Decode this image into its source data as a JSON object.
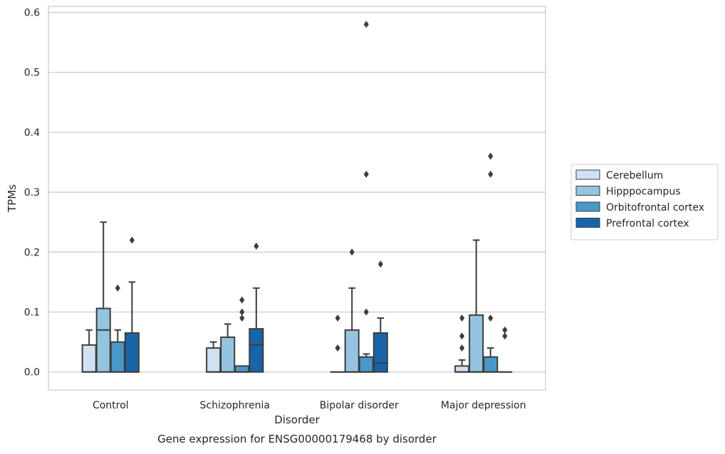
{
  "chart_data": {
    "type": "box",
    "title": "",
    "caption": "Gene expression for ENSG00000179468 by disorder",
    "xlabel": "Disorder",
    "ylabel": "TPMs",
    "ylim": [
      -0.03,
      0.61
    ],
    "yticks": [
      0.0,
      0.1,
      0.2,
      0.3,
      0.4,
      0.5,
      0.6
    ],
    "ytick_labels": [
      "0.0",
      "0.1",
      "0.2",
      "0.3",
      "0.4",
      "0.5",
      "0.6"
    ],
    "grid": "horizontal",
    "legend_position": "right",
    "categories": [
      "Control",
      "Schizophrenia",
      "Bipolar disorder",
      "Major depression"
    ],
    "series": [
      {
        "name": "Cerebellum",
        "color": "#d0e1f2",
        "boxes": [
          {
            "q1": 0.0,
            "median": 0.0,
            "q3": 0.045,
            "whisker_low": 0.0,
            "whisker_high": 0.07,
            "outliers": []
          },
          {
            "q1": 0.0,
            "median": 0.0,
            "q3": 0.04,
            "whisker_low": 0.0,
            "whisker_high": 0.05,
            "outliers": []
          },
          {
            "q1": 0.0,
            "median": 0.0,
            "q3": 0.0,
            "whisker_low": 0.0,
            "whisker_high": 0.0,
            "outliers": [
              0.04,
              0.04,
              0.09
            ]
          },
          {
            "q1": 0.0,
            "median": 0.0,
            "q3": 0.01,
            "whisker_low": 0.0,
            "whisker_high": 0.02,
            "outliers": [
              0.04,
              0.06,
              0.09
            ]
          }
        ]
      },
      {
        "name": "Hipppocampus",
        "color": "#94c4df",
        "boxes": [
          {
            "q1": 0.0,
            "median": 0.07,
            "q3": 0.106,
            "whisker_low": 0.0,
            "whisker_high": 0.25,
            "outliers": []
          },
          {
            "q1": 0.0,
            "median": 0.0,
            "q3": 0.058,
            "whisker_low": 0.0,
            "whisker_high": 0.08,
            "outliers": []
          },
          {
            "q1": 0.0,
            "median": 0.0,
            "q3": 0.07,
            "whisker_low": 0.0,
            "whisker_high": 0.14,
            "outliers": [
              0.2
            ]
          },
          {
            "q1": 0.0,
            "median": 0.0,
            "q3": 0.095,
            "whisker_low": 0.0,
            "whisker_high": 0.22,
            "outliers": []
          }
        ]
      },
      {
        "name": "Orbitofrontal cortex",
        "color": "#4a98c9",
        "boxes": [
          {
            "q1": 0.0,
            "median": 0.0,
            "q3": 0.05,
            "whisker_low": 0.0,
            "whisker_high": 0.07,
            "outliers": [
              0.14
            ]
          },
          {
            "q1": 0.0,
            "median": 0.0,
            "q3": 0.01,
            "whisker_low": 0.0,
            "whisker_high": 0.01,
            "outliers": [
              0.09,
              0.1,
              0.12
            ]
          },
          {
            "q1": 0.0,
            "median": 0.0,
            "q3": 0.025,
            "whisker_low": 0.0,
            "whisker_high": 0.03,
            "outliers": [
              0.1,
              0.33,
              0.58
            ]
          },
          {
            "q1": 0.0,
            "median": 0.0,
            "q3": 0.025,
            "whisker_low": 0.0,
            "whisker_high": 0.04,
            "outliers": [
              0.09,
              0.33,
              0.36
            ]
          }
        ]
      },
      {
        "name": "Prefrontal cortex",
        "color": "#1764ab",
        "boxes": [
          {
            "q1": 0.0,
            "median": 0.0,
            "q3": 0.065,
            "whisker_low": 0.0,
            "whisker_high": 0.15,
            "outliers": [
              0.22
            ]
          },
          {
            "q1": 0.0,
            "median": 0.045,
            "q3": 0.072,
            "whisker_low": 0.0,
            "whisker_high": 0.14,
            "outliers": [
              0.21
            ]
          },
          {
            "q1": 0.0,
            "median": 0.015,
            "q3": 0.065,
            "whisker_low": 0.0,
            "whisker_high": 0.09,
            "outliers": [
              0.18
            ]
          },
          {
            "q1": 0.0,
            "median": 0.0,
            "q3": 0.0,
            "whisker_low": 0.0,
            "whisker_high": 0.0,
            "outliers": [
              0.06,
              0.07
            ]
          }
        ]
      }
    ]
  }
}
